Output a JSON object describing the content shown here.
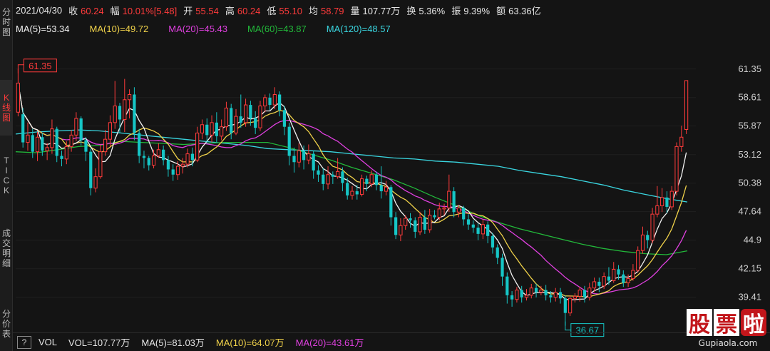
{
  "header": {
    "date": "2021/04/30",
    "close_label": "收",
    "close": "60.24",
    "change_label": "幅",
    "change": "10.01%[5.48]",
    "open_label": "开",
    "open": "55.54",
    "high_label": "高",
    "high": "60.24",
    "low_label": "低",
    "low": "55.10",
    "avg_label": "均",
    "avg": "58.79",
    "volume_label": "量",
    "volume": "107.77万",
    "turnover_label": "换",
    "turnover": "5.36%",
    "amplitude_label": "振",
    "amplitude": "9.39%",
    "amount_label": "额",
    "amount": "63.36亿"
  },
  "ma_legend": {
    "ma5": "MA(5)=53.34",
    "ma10": "MA(10)=49.72",
    "ma20": "MA(20)=45.43",
    "ma60": "MA(60)=43.87",
    "ma120": "MA(120)=48.57"
  },
  "sidebar": {
    "tabs": [
      {
        "label": [
          "分",
          "时",
          "图"
        ],
        "active": false
      },
      {
        "label": [
          "K",
          "线",
          "图"
        ],
        "active": true
      },
      {
        "label": [
          "T",
          "I",
          "C",
          "K"
        ],
        "active": false
      },
      {
        "label": [
          "成",
          "交",
          "明",
          "细"
        ],
        "active": false
      },
      {
        "label": [
          "分",
          "价",
          "表"
        ],
        "active": false
      }
    ]
  },
  "price_axis": [
    "61.35",
    "58.61",
    "55.87",
    "53.12",
    "50.38",
    "47.64",
    "44.9",
    "42.15",
    "39.41"
  ],
  "annotations": {
    "high_marker": "61.35",
    "low_marker": "36.67"
  },
  "footer": {
    "help": "?",
    "indicator": "VOL",
    "vol": "VOL=107.77万",
    "vma5": "MA(5)=81.03万",
    "vma10": "MA(10)=64.07万",
    "vma20": "MA(20)=43.61万"
  },
  "watermark": {
    "chars": [
      "股",
      "票",
      "啦"
    ],
    "url": "Gupiaola.com"
  },
  "colors": {
    "up": "#ff3b3b",
    "down": "#16c6c6",
    "ma5": "#f2f2f2",
    "ma10": "#f0d24a",
    "ma20": "#e040e0",
    "ma60": "#22b83a",
    "ma120": "#3ad6e0"
  },
  "chart_data": {
    "type": "candlestick",
    "title": "",
    "ylim": [
      36.3,
      62.5
    ],
    "y_ticks": [
      61.35,
      58.61,
      55.87,
      53.12,
      50.38,
      47.64,
      44.9,
      42.15,
      39.41
    ],
    "candles": [
      [
        57.2,
        60.0,
        56.8,
        61.35
      ],
      [
        57.0,
        54.3,
        53.8,
        57.6
      ],
      [
        54.3,
        55.0,
        53.5,
        56.2
      ],
      [
        55.0,
        53.4,
        52.8,
        55.6
      ],
      [
        53.4,
        54.8,
        52.5,
        55.3
      ],
      [
        54.8,
        53.5,
        53.0,
        55.2
      ],
      [
        53.5,
        53.8,
        52.6,
        54.2
      ],
      [
        53.8,
        55.6,
        53.2,
        56.5
      ],
      [
        55.6,
        53.0,
        52.4,
        55.8
      ],
      [
        53.0,
        52.7,
        52.0,
        53.5
      ],
      [
        52.7,
        53.9,
        52.2,
        54.4
      ],
      [
        53.9,
        55.0,
        53.4,
        55.5
      ],
      [
        55.0,
        56.6,
        54.4,
        57.2
      ],
      [
        56.6,
        54.5,
        54.0,
        56.8
      ],
      [
        54.5,
        53.4,
        52.5,
        54.8
      ],
      [
        53.4,
        49.9,
        49.2,
        53.7
      ],
      [
        49.9,
        51.0,
        49.5,
        51.8
      ],
      [
        51.0,
        53.4,
        50.8,
        54.1
      ],
      [
        53.4,
        54.6,
        53.0,
        55.5
      ],
      [
        54.6,
        56.2,
        53.9,
        56.9
      ],
      [
        56.2,
        57.8,
        55.6,
        60.2
      ],
      [
        57.8,
        56.5,
        55.2,
        58.1
      ],
      [
        56.5,
        58.4,
        55.3,
        60.4
      ],
      [
        58.4,
        58.9,
        56.6,
        59.4
      ],
      [
        58.9,
        55.2,
        54.5,
        59.6
      ],
      [
        55.2,
        53.0,
        52.3,
        55.6
      ],
      [
        53.0,
        52.8,
        51.8,
        53.5
      ],
      [
        52.8,
        52.1,
        51.6,
        53.0
      ],
      [
        52.1,
        53.0,
        51.8,
        53.6
      ],
      [
        53.0,
        53.6,
        52.8,
        54.2
      ],
      [
        53.6,
        52.6,
        52.1,
        54.0
      ],
      [
        52.6,
        51.7,
        51.0,
        53.0
      ],
      [
        51.7,
        51.2,
        50.6,
        52.2
      ],
      [
        51.2,
        52.0,
        50.7,
        52.5
      ],
      [
        52.0,
        52.2,
        51.3,
        52.8
      ],
      [
        52.2,
        53.2,
        51.9,
        53.7
      ],
      [
        53.2,
        52.6,
        52.0,
        53.8
      ],
      [
        52.6,
        55.2,
        52.4,
        55.8
      ],
      [
        55.2,
        56.0,
        54.6,
        56.5
      ],
      [
        56.0,
        55.0,
        54.2,
        56.6
      ],
      [
        55.0,
        56.2,
        54.3,
        56.9
      ],
      [
        56.2,
        54.9,
        54.3,
        57.2
      ],
      [
        54.9,
        55.8,
        54.5,
        56.5
      ],
      [
        55.8,
        57.6,
        55.4,
        58.2
      ],
      [
        57.6,
        55.2,
        54.6,
        58.0
      ],
      [
        55.2,
        56.8,
        55.0,
        57.5
      ],
      [
        56.8,
        56.2,
        55.7,
        58.9
      ],
      [
        56.2,
        57.9,
        55.8,
        58.5
      ],
      [
        57.9,
        56.6,
        55.9,
        58.3
      ],
      [
        56.6,
        55.7,
        55.1,
        57.3
      ],
      [
        55.7,
        57.8,
        55.4,
        58.3
      ],
      [
        57.8,
        58.6,
        57.2,
        58.9
      ],
      [
        58.6,
        57.9,
        57.4,
        59.0
      ],
      [
        57.9,
        58.9,
        57.5,
        59.6
      ],
      [
        58.9,
        57.4,
        56.8,
        59.2
      ],
      [
        57.4,
        55.8,
        55.0,
        57.8
      ],
      [
        55.8,
        53.0,
        52.1,
        56.2
      ],
      [
        53.0,
        52.4,
        51.4,
        53.8
      ],
      [
        52.4,
        53.5,
        51.9,
        54.2
      ],
      [
        53.5,
        52.6,
        51.7,
        54.0
      ],
      [
        52.6,
        53.2,
        52.2,
        54.1
      ],
      [
        53.2,
        51.6,
        50.8,
        53.5
      ],
      [
        51.6,
        51.2,
        50.5,
        52.1
      ],
      [
        51.2,
        50.3,
        49.7,
        51.8
      ],
      [
        50.3,
        51.2,
        49.8,
        52.0
      ],
      [
        51.2,
        51.0,
        50.3,
        51.5
      ],
      [
        51.0,
        51.5,
        50.8,
        52.8
      ],
      [
        51.5,
        50.4,
        49.6,
        51.9
      ],
      [
        50.4,
        49.2,
        48.8,
        50.9
      ],
      [
        49.2,
        49.6,
        48.8,
        50.1
      ],
      [
        49.6,
        49.3,
        48.8,
        50.2
      ],
      [
        49.3,
        50.8,
        49.1,
        51.2
      ],
      [
        50.8,
        50.3,
        49.6,
        51.1
      ],
      [
        50.3,
        51.2,
        50.0,
        51.6
      ],
      [
        51.2,
        50.2,
        49.7,
        51.5
      ],
      [
        50.2,
        49.6,
        48.9,
        52.0
      ],
      [
        49.6,
        50.0,
        49.2,
        50.6
      ],
      [
        50.0,
        47.1,
        46.3,
        50.2
      ],
      [
        47.1,
        45.4,
        45.0,
        47.6
      ],
      [
        45.4,
        46.3,
        44.8,
        47.0
      ],
      [
        46.3,
        47.0,
        45.9,
        47.3
      ],
      [
        47.0,
        46.8,
        46.1,
        47.5
      ],
      [
        46.8,
        45.7,
        45.1,
        47.1
      ],
      [
        45.7,
        47.1,
        45.4,
        47.6
      ],
      [
        47.1,
        45.9,
        45.5,
        47.8
      ],
      [
        45.9,
        47.3,
        45.6,
        47.9
      ],
      [
        47.3,
        47.1,
        46.9,
        47.8
      ],
      [
        47.1,
        47.9,
        46.8,
        48.5
      ],
      [
        47.9,
        48.0,
        47.3,
        48.4
      ],
      [
        48.0,
        49.6,
        47.6,
        51.2
      ],
      [
        49.6,
        47.6,
        47.1,
        50.0
      ],
      [
        47.6,
        48.0,
        47.1,
        48.3
      ],
      [
        48.0,
        46.9,
        46.3,
        48.2
      ],
      [
        46.9,
        46.4,
        45.9,
        47.4
      ],
      [
        46.4,
        46.1,
        45.6,
        46.8
      ],
      [
        46.1,
        45.5,
        44.9,
        46.5
      ],
      [
        45.5,
        46.4,
        45.0,
        46.9
      ],
      [
        46.4,
        45.3,
        44.6,
        46.7
      ],
      [
        45.3,
        44.2,
        43.6,
        45.6
      ],
      [
        44.2,
        43.2,
        42.6,
        44.5
      ],
      [
        43.2,
        41.4,
        40.5,
        43.6
      ],
      [
        41.4,
        39.6,
        38.8,
        41.8
      ],
      [
        39.6,
        39.2,
        38.5,
        40.0
      ],
      [
        39.2,
        40.1,
        38.9,
        40.4
      ],
      [
        40.1,
        39.4,
        38.9,
        40.5
      ],
      [
        39.4,
        39.6,
        39.1,
        40.2
      ],
      [
        39.6,
        40.3,
        39.3,
        40.7
      ],
      [
        40.3,
        39.9,
        39.4,
        40.7
      ],
      [
        39.9,
        40.1,
        39.6,
        40.5
      ],
      [
        40.1,
        39.6,
        39.1,
        40.6
      ],
      [
        39.6,
        39.4,
        38.9,
        40.0
      ],
      [
        39.4,
        39.9,
        39.0,
        40.3
      ],
      [
        39.9,
        39.3,
        38.8,
        40.3
      ],
      [
        39.3,
        37.9,
        36.67,
        39.6
      ],
      [
        37.9,
        39.3,
        37.6,
        39.6
      ],
      [
        39.3,
        39.5,
        38.9,
        39.8
      ],
      [
        39.5,
        40.1,
        39.0,
        40.4
      ],
      [
        40.1,
        39.4,
        38.9,
        40.5
      ],
      [
        39.4,
        40.3,
        39.1,
        40.8
      ],
      [
        40.3,
        40.9,
        39.9,
        41.3
      ],
      [
        40.9,
        40.5,
        39.9,
        41.3
      ],
      [
        40.5,
        41.4,
        40.2,
        41.8
      ],
      [
        41.4,
        41.0,
        40.6,
        42.3
      ],
      [
        41.0,
        42.1,
        40.8,
        42.8
      ],
      [
        42.1,
        41.6,
        41.1,
        42.5
      ],
      [
        41.6,
        40.8,
        40.4,
        42.0
      ],
      [
        40.8,
        41.2,
        40.4,
        41.6
      ],
      [
        41.2,
        42.0,
        41.0,
        42.6
      ],
      [
        42.0,
        43.9,
        41.8,
        44.3
      ],
      [
        43.9,
        45.4,
        43.6,
        46.2
      ],
      [
        45.4,
        44.9,
        44.1,
        45.8
      ],
      [
        44.9,
        47.4,
        44.6,
        48.0
      ],
      [
        47.4,
        48.2,
        47.1,
        50.1
      ],
      [
        48.2,
        49.0,
        47.6,
        49.9
      ],
      [
        49.0,
        48.1,
        47.5,
        49.6
      ],
      [
        48.1,
        49.6,
        47.8,
        50.1
      ],
      [
        49.6,
        53.9,
        49.2,
        54.3
      ],
      [
        53.9,
        54.8,
        53.4,
        55.9
      ],
      [
        55.54,
        60.24,
        55.1,
        60.24
      ]
    ],
    "series": [
      {
        "name": "MA(5)",
        "last": 53.34
      },
      {
        "name": "MA(10)",
        "last": 49.72
      },
      {
        "name": "MA(20)",
        "last": 45.43
      },
      {
        "name": "MA(60)",
        "last": 43.87
      },
      {
        "name": "MA(120)",
        "last": 48.57
      }
    ],
    "ma120": [
      55.1,
      55.3,
      55.4,
      55.5,
      55.4,
      55.2,
      55.0,
      54.8,
      54.6,
      54.4,
      54.2,
      54.0,
      53.7,
      53.6,
      53.5,
      53.4,
      53.2,
      53.0,
      52.8,
      52.7,
      52.5,
      52.4,
      52.2,
      52.0,
      51.6,
      51.3,
      51.0,
      50.6,
      50.2,
      49.7,
      49.3,
      48.9,
      48.57
    ],
    "ma60": [
      53.4,
      53.3,
      53.6,
      53.9,
      54.0,
      54.4,
      54.3,
      54.2,
      54.1,
      54.2,
      54.3,
      54.3,
      54.3,
      53.8,
      53.2,
      52.6,
      51.9,
      51.3,
      50.7,
      49.9,
      49.0,
      48.2,
      47.3,
      46.6,
      46.0,
      45.5,
      45.0,
      44.5,
      44.1,
      43.8,
      43.6,
      43.5,
      43.87
    ]
  }
}
